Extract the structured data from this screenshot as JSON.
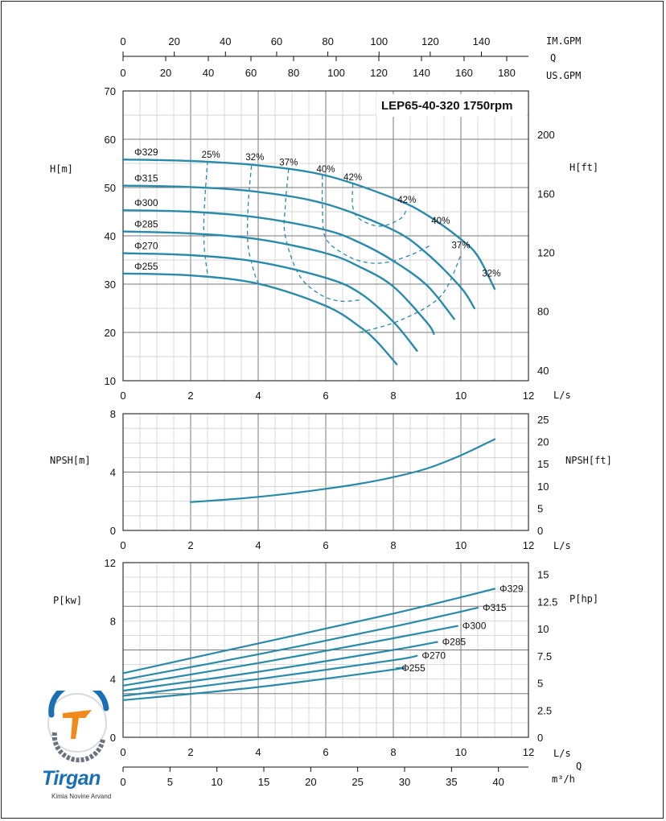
{
  "title": "LEP65-40-320 1750rpm",
  "colors": {
    "curve": "#2a8aaa",
    "grid_major": "#7a7a7a",
    "grid_minor": "#c8c8c8"
  },
  "top_axes": {
    "im_gpm": {
      "label": "IM.GPM",
      "ticks": [
        "0",
        "20",
        "40",
        "60",
        "80",
        "100",
        "120",
        "140"
      ]
    },
    "q_label": "Q",
    "us_gpm": {
      "label": "US.GPM",
      "ticks": [
        "0",
        "20",
        "40",
        "60",
        "80",
        "100",
        "120",
        "140",
        "160",
        "180"
      ]
    }
  },
  "bottom_axes": {
    "q_label": "Q",
    "m3h": {
      "label": "m³/h",
      "ticks": [
        "0",
        "5",
        "10",
        "15",
        "20",
        "25",
        "30",
        "35",
        "40"
      ]
    }
  },
  "logo": {
    "name": "Tirgan",
    "subtitle": "Kimia Novine Arvand"
  },
  "chart_data": [
    {
      "type": "line",
      "panel": "head",
      "title": "LEP65-40-320 1750rpm",
      "xlabel": "L/s",
      "ylabel": "H[m]",
      "ylabel_right": "H[ft]",
      "xlim": [
        0,
        12
      ],
      "ylim": [
        10,
        70
      ],
      "x_ticks": [
        "0",
        "2",
        "4",
        "6",
        "8",
        "10",
        "12"
      ],
      "y_ticks": [
        "10",
        "20",
        "30",
        "40",
        "50",
        "60",
        "70"
      ],
      "y_ticks_right": [
        {
          "value": 40,
          "label": "40"
        },
        {
          "value": 80,
          "label": "80"
        },
        {
          "value": 120,
          "label": "120"
        },
        {
          "value": 160,
          "label": "160"
        },
        {
          "value": 200,
          "label": "200"
        }
      ],
      "grid": true,
      "series": [
        {
          "name": "Φ329",
          "x": [
            0,
            2,
            4,
            6,
            8,
            9,
            10,
            10.5,
            11
          ],
          "y": [
            55.8,
            55.5,
            54.6,
            52.5,
            47.8,
            44.3,
            39.3,
            35.8,
            29.0
          ]
        },
        {
          "name": "Φ315",
          "x": [
            0,
            2,
            4,
            6,
            8,
            9,
            10,
            10.4
          ],
          "y": [
            50.4,
            50.1,
            49.1,
            46.6,
            41.2,
            36.3,
            29.3,
            25.0
          ]
        },
        {
          "name": "Φ300",
          "x": [
            0,
            2,
            4,
            6,
            7,
            8,
            9,
            9.8
          ],
          "y": [
            45.3,
            45.0,
            43.8,
            41.2,
            38.6,
            34.8,
            29.7,
            22.8
          ]
        },
        {
          "name": "Φ285",
          "x": [
            0,
            2,
            4,
            6,
            7,
            8,
            9,
            9.2
          ],
          "y": [
            40.9,
            40.5,
            39.3,
            36.4,
            33.6,
            29.5,
            22.0,
            19.7
          ]
        },
        {
          "name": "Φ270",
          "x": [
            0,
            2,
            4,
            6,
            7,
            8,
            8.7
          ],
          "y": [
            36.4,
            36.0,
            34.6,
            31.3,
            28.2,
            22.2,
            16.2
          ]
        },
        {
          "name": "Φ255",
          "x": [
            0,
            2,
            4,
            6,
            7,
            7.5,
            8.1
          ],
          "y": [
            32.2,
            31.8,
            30.1,
            25.5,
            21.2,
            18.2,
            13.4
          ]
        }
      ],
      "efficiency_labels": [
        {
          "label": "25%",
          "x": 2.6,
          "y": 56.2
        },
        {
          "label": "32%",
          "x": 3.9,
          "y": 55.7
        },
        {
          "label": "37%",
          "x": 4.9,
          "y": 54.6
        },
        {
          "label": "40%",
          "x": 6.0,
          "y": 53.2
        },
        {
          "label": "42%",
          "x": 6.8,
          "y": 51.5
        },
        {
          "label": "42%",
          "x": 8.4,
          "y": 46.8
        },
        {
          "label": "40%",
          "x": 9.4,
          "y": 42.5
        },
        {
          "label": "37%",
          "x": 10.0,
          "y": 37.4
        },
        {
          "label": "32%",
          "x": 10.9,
          "y": 31.6
        }
      ],
      "efficiency_curves": [
        {
          "label": "25%",
          "x": [
            2.5,
            2.4,
            2.4,
            2.5
          ],
          "y": [
            55.5,
            45.0,
            38.0,
            32.0
          ]
        },
        {
          "label": "32%",
          "x": [
            3.8,
            3.7,
            3.7,
            3.9,
            4.0
          ],
          "y": [
            54.5,
            46.0,
            38.0,
            32.0,
            30.3
          ]
        },
        {
          "label": "37%",
          "x": [
            4.9,
            4.8,
            4.8,
            5.2,
            5.8,
            6.4,
            7.0
          ],
          "y": [
            53.8,
            46.0,
            40.0,
            32.0,
            28.0,
            26.5,
            26.7
          ]
        },
        {
          "label": "40%",
          "x": [
            5.9,
            5.9,
            6.0,
            6.6,
            7.2,
            7.8,
            8.5,
            9.1
          ],
          "y": [
            52.5,
            46.0,
            39.5,
            36.0,
            34.5,
            34.5,
            36.0,
            38.0
          ]
        },
        {
          "label": "42%",
          "x": [
            6.8,
            6.8,
            7.0,
            7.6,
            8.2,
            8.4
          ],
          "y": [
            50.8,
            46.0,
            43.5,
            42.0,
            43.5,
            45.5
          ]
        },
        {
          "label": "37%-R",
          "x": [
            7.0,
            8.2,
            9.4,
            10.0
          ],
          "y": [
            20.0,
            22.5,
            27.5,
            36.0
          ]
        }
      ],
      "curve_labels": [
        "Φ329",
        "Φ315",
        "Φ300",
        "Φ285",
        "Φ270",
        "Φ255"
      ]
    },
    {
      "type": "line",
      "panel": "npsh",
      "xlabel": "L/s",
      "ylabel": "NPSH[m]",
      "ylabel_right": "NPSH[ft]",
      "xlim": [
        0,
        12
      ],
      "ylim": [
        0,
        8
      ],
      "x_ticks": [
        "0",
        "2",
        "4",
        "6",
        "8",
        "10",
        "12"
      ],
      "y_ticks": [
        {
          "value": 0,
          "label": "0"
        },
        {
          "value": 4,
          "label": "4"
        },
        {
          "value": 8,
          "label": "8"
        }
      ],
      "y_ticks_right": [
        {
          "value": 0,
          "label": "0"
        },
        {
          "value": 5,
          "label": "5"
        },
        {
          "value": 10,
          "label": "10"
        },
        {
          "value": 15,
          "label": "15"
        },
        {
          "value": 20,
          "label": "20"
        },
        {
          "value": 25,
          "label": "25"
        }
      ],
      "grid": true,
      "series": [
        {
          "name": "NPSH",
          "x": [
            2,
            3,
            4,
            5,
            6,
            7,
            8,
            9,
            10,
            11
          ],
          "y": [
            1.95,
            2.1,
            2.3,
            2.55,
            2.85,
            3.2,
            3.65,
            4.25,
            5.15,
            6.25
          ]
        }
      ]
    },
    {
      "type": "line",
      "panel": "power",
      "xlabel": "L/s",
      "ylabel": "P[kw]",
      "ylabel_right": "P[hp]",
      "xlim": [
        0,
        12
      ],
      "ylim": [
        0,
        12
      ],
      "x_ticks": [
        "0",
        "2",
        "4",
        "6",
        "8",
        "10",
        "12"
      ],
      "y_ticks": [
        {
          "value": 0,
          "label": "0"
        },
        {
          "value": 4,
          "label": "4"
        },
        {
          "value": 8,
          "label": "8"
        },
        {
          "value": 12,
          "label": "12"
        }
      ],
      "y_ticks_right": [
        {
          "value": 0,
          "label": "0"
        },
        {
          "value": 2.5,
          "label": "2.5"
        },
        {
          "value": 5,
          "label": "5"
        },
        {
          "value": 7.5,
          "label": "7.5"
        },
        {
          "value": 10,
          "label": "10"
        },
        {
          "value": 12.5,
          "label": "12.5"
        },
        {
          "value": 15,
          "label": "15"
        }
      ],
      "grid": true,
      "series": [
        {
          "name": "Φ329",
          "x": [
            0,
            4,
            8,
            11
          ],
          "y": [
            4.4,
            6.45,
            8.5,
            10.2
          ]
        },
        {
          "name": "Φ315",
          "x": [
            0,
            4,
            8,
            10.5
          ],
          "y": [
            3.95,
            5.7,
            7.6,
            8.9
          ]
        },
        {
          "name": "Φ300",
          "x": [
            0,
            4,
            8,
            9.9
          ],
          "y": [
            3.55,
            5.1,
            6.8,
            7.65
          ]
        },
        {
          "name": "Φ285",
          "x": [
            0,
            4,
            8,
            9.3
          ],
          "y": [
            3.2,
            4.5,
            6.0,
            6.55
          ]
        },
        {
          "name": "Φ270",
          "x": [
            0,
            4,
            8,
            8.7
          ],
          "y": [
            2.85,
            4.0,
            5.3,
            5.6
          ]
        },
        {
          "name": "Φ255",
          "x": [
            0,
            4,
            8,
            8.1
          ],
          "y": [
            2.55,
            3.45,
            4.65,
            4.75
          ]
        }
      ]
    }
  ]
}
